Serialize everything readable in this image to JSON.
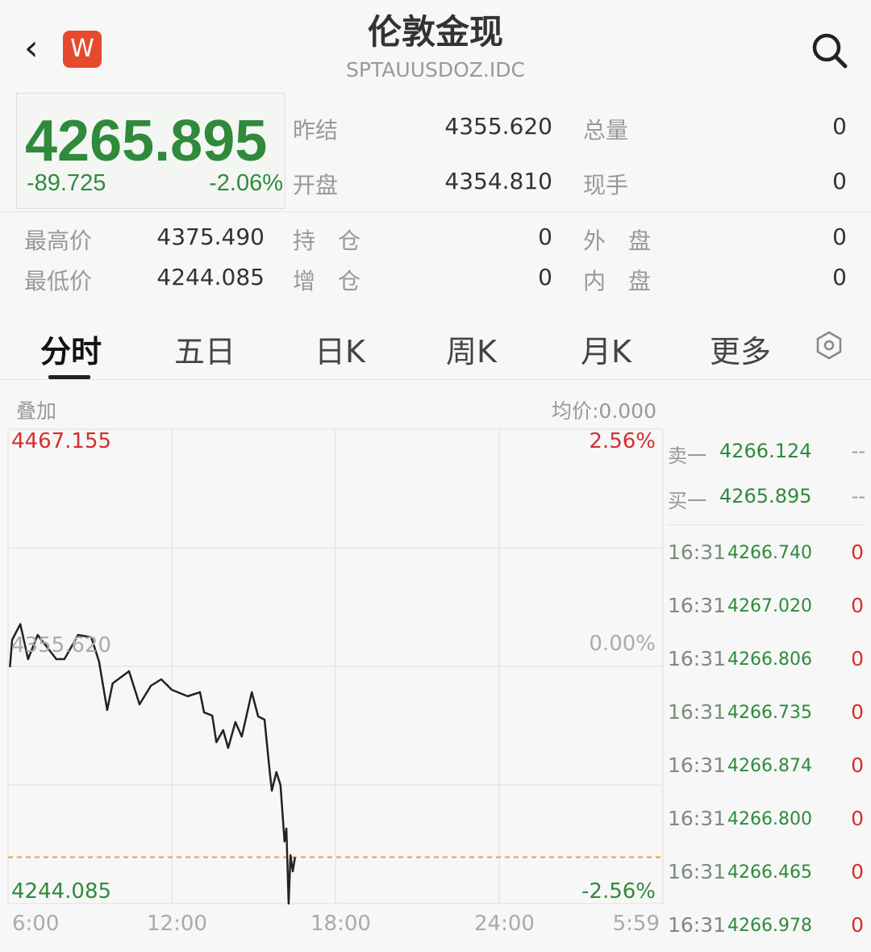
{
  "header": {
    "title": "伦敦金现",
    "code": "SPTAUUSDOZ.IDC",
    "logo_letter": "W"
  },
  "quote": {
    "price": "4265.895",
    "change": "-89.725",
    "change_pct": "-2.06%",
    "stats": [
      {
        "label": "昨结",
        "value": "4355.620"
      },
      {
        "label": "总量",
        "value": "0"
      },
      {
        "label": "开盘",
        "value": "4354.810"
      },
      {
        "label": "现手",
        "value": "0"
      },
      {
        "label": "最高价",
        "value": "4375.490"
      },
      {
        "label": "持　仓",
        "value": "0"
      },
      {
        "label": "外　盘",
        "value": "0"
      },
      {
        "label": "最低价",
        "value": "4244.085"
      },
      {
        "label": "增　仓",
        "value": "0"
      },
      {
        "label": "内　盘",
        "value": "0"
      }
    ]
  },
  "tabs": [
    {
      "label": "分时",
      "active": true
    },
    {
      "label": "五日"
    },
    {
      "label": "日K"
    },
    {
      "label": "周K"
    },
    {
      "label": "月K"
    },
    {
      "label": "更多"
    }
  ],
  "chart_header": {
    "overlay": "叠加",
    "avg": "均价:0.000"
  },
  "colors": {
    "up": "#d32f2f",
    "down": "#2f8a3c",
    "line": "#222222",
    "current_line": "#e8a04a"
  },
  "chart_data": {
    "type": "line",
    "ylim": [
      4244.085,
      4467.155
    ],
    "prev_close": 4355.62,
    "current": 4265.895,
    "y_labels": {
      "top": "4467.155",
      "mid": "4355.620",
      "bottom": "4244.085",
      "top_pct": "2.56%",
      "mid_pct": "0.00%",
      "bottom_pct": "-2.56%"
    },
    "x_ticks": [
      "6:00",
      "12:00",
      "18:00",
      "24:00",
      "5:59"
    ],
    "x_range_hours": [
      6,
      30
    ],
    "points": [
      [
        "6:04",
        4355.24
      ],
      [
        "6:09",
        4368.14
      ],
      [
        "6:27",
        4375.49
      ],
      [
        "6:44",
        4359.03
      ],
      [
        "7:05",
        4370.42
      ],
      [
        "7:46",
        4359.03
      ],
      [
        "8:04",
        4359.03
      ],
      [
        "8:34",
        4370.42
      ],
      [
        "9:03",
        4369.28
      ],
      [
        "9:20",
        4357.9
      ],
      [
        "9:38",
        4335.13
      ],
      [
        "9:50",
        4347.65
      ],
      [
        "10:26",
        4353.34
      ],
      [
        "10:49",
        4337.79
      ],
      [
        "11:14",
        4346.52
      ],
      [
        "11:37",
        4349.55
      ],
      [
        "12:00",
        4344.62
      ],
      [
        "12:35",
        4341.58
      ],
      [
        "13:02",
        4343.48
      ],
      [
        "13:11",
        4333.99
      ],
      [
        "13:29",
        4332.48
      ],
      [
        "13:38",
        4319.96
      ],
      [
        "13:53",
        4325.65
      ],
      [
        "14:04",
        4317.3
      ],
      [
        "14:20",
        4329.44
      ],
      [
        "14:34",
        4322.61
      ],
      [
        "14:56",
        4343.48
      ],
      [
        "15:10",
        4332.1
      ],
      [
        "15:24",
        4330.58
      ],
      [
        "15:36",
        4304.78
      ],
      [
        "15:40",
        4297.2
      ],
      [
        "15:50",
        4305.92
      ],
      [
        "15:59",
        4299.85
      ],
      [
        "16:08",
        4273.3
      ],
      [
        "16:12",
        4279.37
      ],
      [
        "16:17",
        4244.085
      ],
      [
        "16:21",
        4266.85
      ],
      [
        "16:26",
        4259.26
      ],
      [
        "16:31",
        4265.895
      ]
    ]
  },
  "orderbook": [
    {
      "label": "卖一",
      "price": "4266.124",
      "vol": "--"
    },
    {
      "label": "买一",
      "price": "4265.895",
      "vol": "--"
    }
  ],
  "ticks": [
    {
      "time": "16:31",
      "price": "4266.740",
      "vol": "0"
    },
    {
      "time": "16:31",
      "price": "4267.020",
      "vol": "0"
    },
    {
      "time": "16:31",
      "price": "4266.806",
      "vol": "0"
    },
    {
      "time": "16:31",
      "price": "4266.735",
      "vol": "0"
    },
    {
      "time": "16:31",
      "price": "4266.874",
      "vol": "0"
    },
    {
      "time": "16:31",
      "price": "4266.800",
      "vol": "0"
    },
    {
      "time": "16:31",
      "price": "4266.465",
      "vol": "0"
    },
    {
      "time": "16:31",
      "price": "4266.978",
      "vol": "0"
    }
  ]
}
